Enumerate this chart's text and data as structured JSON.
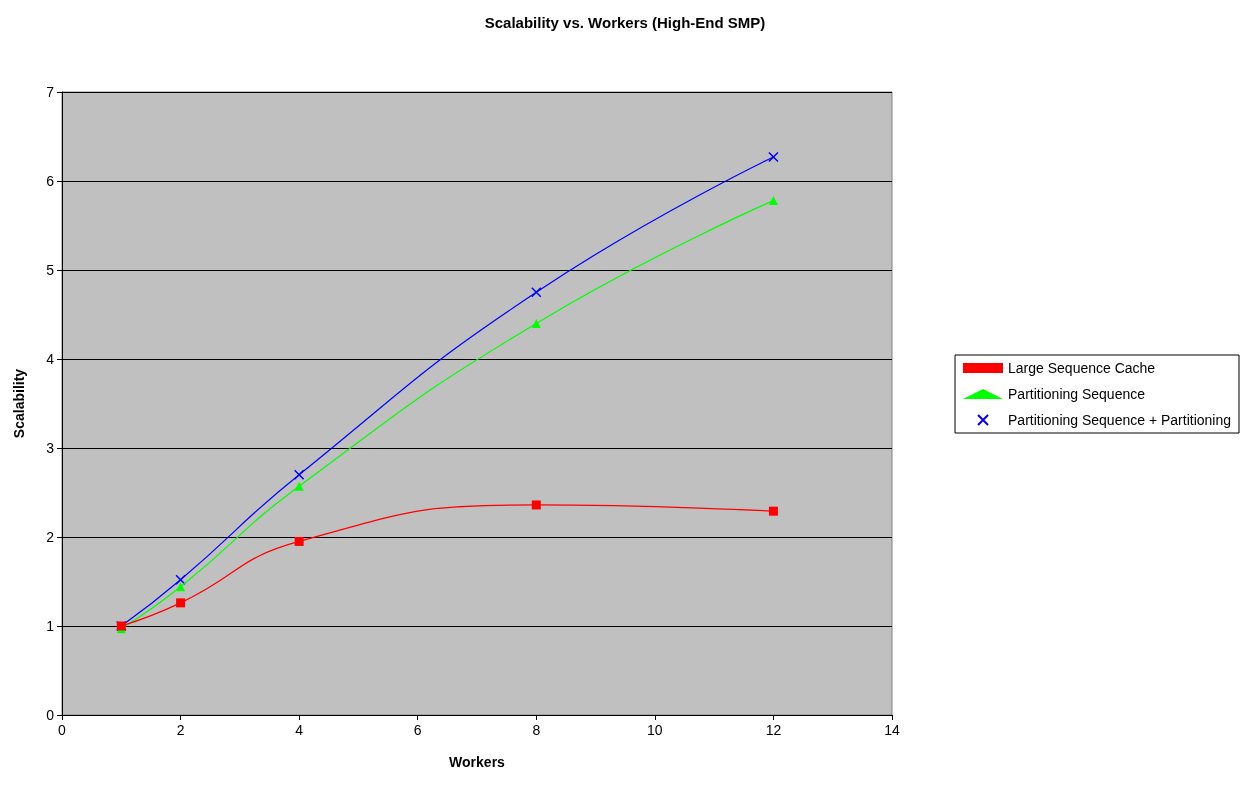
{
  "chart_data": {
    "type": "line",
    "title": "Scalability vs. Workers (High-End SMP)",
    "xlabel": "Workers",
    "ylabel": "Scalability",
    "x": [
      1,
      2,
      4,
      8,
      12
    ],
    "series": [
      {
        "name": "Large Sequence Cache",
        "color": "#ff0000",
        "marker": "square",
        "values": [
          1.0,
          1.26,
          1.95,
          2.36,
          2.29
        ]
      },
      {
        "name": "Partitioning Sequence",
        "color": "#00ff00",
        "marker": "triangle",
        "values": [
          0.97,
          1.44,
          2.57,
          4.4,
          5.78
        ]
      },
      {
        "name": "Partitioning Sequence + Partitioning",
        "color": "#0000ff",
        "marker": "cross",
        "values": [
          1.0,
          1.52,
          2.7,
          4.75,
          6.27
        ]
      }
    ],
    "xlim": [
      0,
      14
    ],
    "xticks": [
      0,
      2,
      4,
      6,
      8,
      10,
      12,
      14
    ],
    "ylim": [
      0,
      7
    ],
    "yticks": [
      0,
      1,
      2,
      3,
      4,
      5,
      6,
      7
    ],
    "grid": "y",
    "legend": "right",
    "line_style": "solid"
  }
}
